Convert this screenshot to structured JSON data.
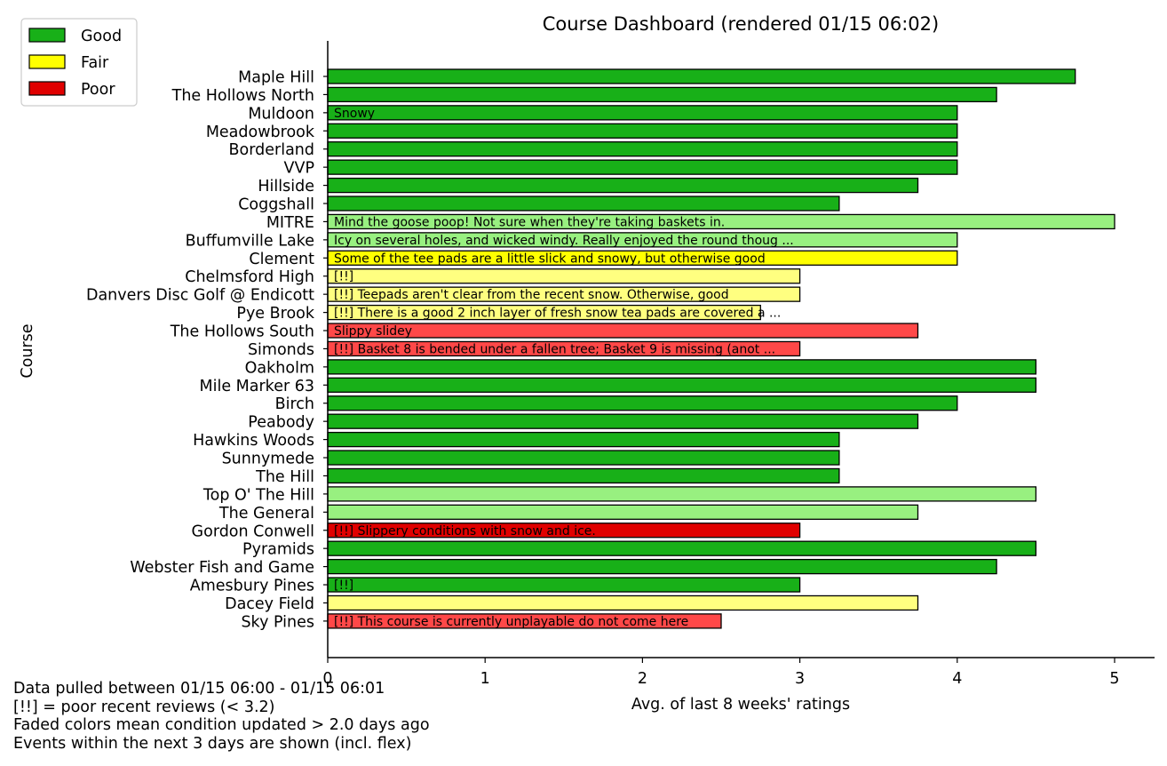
{
  "chart_data": {
    "type": "bar",
    "orientation": "horizontal",
    "title": "Course Dashboard (rendered 01/15 06:02)",
    "xlabel": "Avg. of last 8 weeks' ratings",
    "ylabel": "Course",
    "xlim": [
      0,
      5.25
    ],
    "xticks": [
      "0",
      "1",
      "2",
      "3",
      "4",
      "5"
    ],
    "grid": false,
    "legend_position": "top-left",
    "legend": [
      {
        "name": "Good",
        "color": "#18b018"
      },
      {
        "name": "Fair",
        "color": "#ffff00"
      },
      {
        "name": "Poor",
        "color": "#e00000"
      }
    ],
    "colors": {
      "good": "#18b018",
      "good_faded": "#98f080",
      "fair": "#ffff00",
      "fair_faded": "#ffff80",
      "poor": "#e00000",
      "poor_faded": "#ff4848"
    },
    "bars": [
      {
        "course": "Maple Hill",
        "value": 4.75,
        "condition": "good",
        "faded": false,
        "note": ""
      },
      {
        "course": "The Hollows North",
        "value": 4.25,
        "condition": "good",
        "faded": false,
        "note": ""
      },
      {
        "course": "Muldoon",
        "value": 4.0,
        "condition": "good",
        "faded": false,
        "note": "Snowy"
      },
      {
        "course": "Meadowbrook",
        "value": 4.0,
        "condition": "good",
        "faded": false,
        "note": ""
      },
      {
        "course": "Borderland",
        "value": 4.0,
        "condition": "good",
        "faded": false,
        "note": ""
      },
      {
        "course": "VVP",
        "value": 4.0,
        "condition": "good",
        "faded": false,
        "note": ""
      },
      {
        "course": "Hillside",
        "value": 3.75,
        "condition": "good",
        "faded": false,
        "note": ""
      },
      {
        "course": "Coggshall",
        "value": 3.25,
        "condition": "good",
        "faded": false,
        "note": ""
      },
      {
        "course": "MITRE",
        "value": 5.0,
        "condition": "good",
        "faded": true,
        "note": "Mind the goose poop! Not sure when they're taking baskets in."
      },
      {
        "course": "Buffumville Lake",
        "value": 4.0,
        "condition": "good",
        "faded": true,
        "note": "Icy on several holes, and wicked windy. Really enjoyed the round thoug ..."
      },
      {
        "course": "Clement",
        "value": 4.0,
        "condition": "fair",
        "faded": false,
        "note": "Some of the tee pads are a little slick and snowy, but otherwise good"
      },
      {
        "course": "Chelmsford High",
        "value": 3.0,
        "condition": "fair",
        "faded": true,
        "note": "[!!]"
      },
      {
        "course": "Danvers Disc Golf @ Endicott",
        "value": 3.0,
        "condition": "fair",
        "faded": true,
        "note": "[!!] Teepads aren't clear from the recent snow. Otherwise, good"
      },
      {
        "course": "Pye Brook",
        "value": 2.75,
        "condition": "fair",
        "faded": true,
        "note": "[!!] There is a good 2 inch layer of fresh snow tea pads are covered a ..."
      },
      {
        "course": "The Hollows South",
        "value": 3.75,
        "condition": "poor",
        "faded": true,
        "note": "Slippy slidey"
      },
      {
        "course": "Simonds",
        "value": 3.0,
        "condition": "poor",
        "faded": true,
        "note": "[!!] Basket 8 is bended under a fallen tree; Basket 9 is missing (anot ..."
      },
      {
        "course": "Oakholm",
        "value": 4.5,
        "condition": "good",
        "faded": false,
        "note": ""
      },
      {
        "course": "Mile Marker 63",
        "value": 4.5,
        "condition": "good",
        "faded": false,
        "note": ""
      },
      {
        "course": "Birch",
        "value": 4.0,
        "condition": "good",
        "faded": false,
        "note": ""
      },
      {
        "course": "Peabody",
        "value": 3.75,
        "condition": "good",
        "faded": false,
        "note": ""
      },
      {
        "course": "Hawkins Woods",
        "value": 3.25,
        "condition": "good",
        "faded": false,
        "note": ""
      },
      {
        "course": "Sunnymede",
        "value": 3.25,
        "condition": "good",
        "faded": false,
        "note": ""
      },
      {
        "course": "The Hill",
        "value": 3.25,
        "condition": "good",
        "faded": false,
        "note": ""
      },
      {
        "course": "Top O' The Hill",
        "value": 4.5,
        "condition": "good",
        "faded": true,
        "note": ""
      },
      {
        "course": "The General",
        "value": 3.75,
        "condition": "good",
        "faded": true,
        "note": ""
      },
      {
        "course": "Gordon Conwell",
        "value": 3.0,
        "condition": "poor",
        "faded": false,
        "note": "[!!] Slippery conditions with snow and ice."
      },
      {
        "course": "Pyramids",
        "value": 4.5,
        "condition": "good",
        "faded": false,
        "note": ""
      },
      {
        "course": "Webster Fish and Game",
        "value": 4.25,
        "condition": "good",
        "faded": false,
        "note": ""
      },
      {
        "course": "Amesbury Pines",
        "value": 3.0,
        "condition": "good",
        "faded": false,
        "note": "[!!]"
      },
      {
        "course": "Dacey Field",
        "value": 3.75,
        "condition": "fair",
        "faded": true,
        "note": ""
      },
      {
        "course": "Sky Pines",
        "value": 2.5,
        "condition": "poor",
        "faded": true,
        "note": "[!!] This course is currently unplayable do not come here"
      }
    ]
  },
  "footnotes": [
    "Data pulled between 01/15 06:00 - 01/15 06:01",
    "[!!] = poor recent reviews (< 3.2)",
    "Faded colors mean condition updated > 2.0 days ago",
    "Events within the next 3 days are shown (incl. flex)"
  ]
}
